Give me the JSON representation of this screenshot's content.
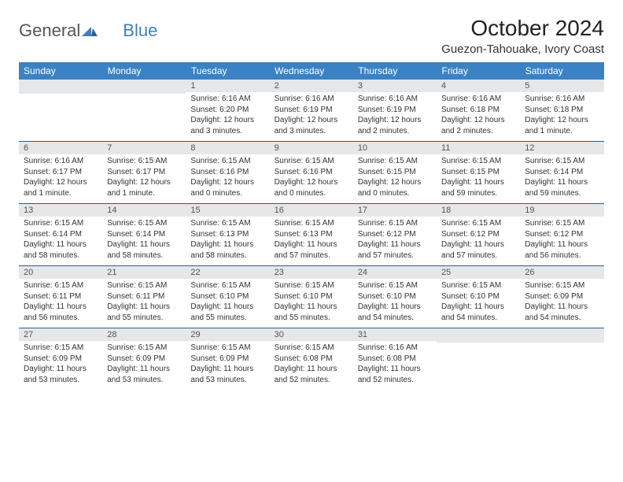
{
  "logo": {
    "text_a": "General",
    "text_b": "Blue"
  },
  "title": "October 2024",
  "location": "Guezon-Tahouake, Ivory Coast",
  "colors": {
    "header_bg": "#3b82c4",
    "header_fg": "#ffffff",
    "daynum_bg": "#e5e7e9",
    "row_border": "#2c5f8d",
    "logo_gray": "#555555",
    "logo_blue": "#3b82c4"
  },
  "weekdays": [
    "Sunday",
    "Monday",
    "Tuesday",
    "Wednesday",
    "Thursday",
    "Friday",
    "Saturday"
  ],
  "weeks": [
    [
      {
        "empty": true
      },
      {
        "empty": true
      },
      {
        "day": "1",
        "sunrise": "6:16 AM",
        "sunset": "6:20 PM",
        "daylight": "12 hours and 3 minutes."
      },
      {
        "day": "2",
        "sunrise": "6:16 AM",
        "sunset": "6:19 PM",
        "daylight": "12 hours and 3 minutes."
      },
      {
        "day": "3",
        "sunrise": "6:16 AM",
        "sunset": "6:19 PM",
        "daylight": "12 hours and 2 minutes."
      },
      {
        "day": "4",
        "sunrise": "6:16 AM",
        "sunset": "6:18 PM",
        "daylight": "12 hours and 2 minutes."
      },
      {
        "day": "5",
        "sunrise": "6:16 AM",
        "sunset": "6:18 PM",
        "daylight": "12 hours and 1 minute."
      }
    ],
    [
      {
        "day": "6",
        "sunrise": "6:16 AM",
        "sunset": "6:17 PM",
        "daylight": "12 hours and 1 minute."
      },
      {
        "day": "7",
        "sunrise": "6:15 AM",
        "sunset": "6:17 PM",
        "daylight": "12 hours and 1 minute."
      },
      {
        "day": "8",
        "sunrise": "6:15 AM",
        "sunset": "6:16 PM",
        "daylight": "12 hours and 0 minutes."
      },
      {
        "day": "9",
        "sunrise": "6:15 AM",
        "sunset": "6:16 PM",
        "daylight": "12 hours and 0 minutes."
      },
      {
        "day": "10",
        "sunrise": "6:15 AM",
        "sunset": "6:15 PM",
        "daylight": "12 hours and 0 minutes."
      },
      {
        "day": "11",
        "sunrise": "6:15 AM",
        "sunset": "6:15 PM",
        "daylight": "11 hours and 59 minutes."
      },
      {
        "day": "12",
        "sunrise": "6:15 AM",
        "sunset": "6:14 PM",
        "daylight": "11 hours and 59 minutes."
      }
    ],
    [
      {
        "day": "13",
        "sunrise": "6:15 AM",
        "sunset": "6:14 PM",
        "daylight": "11 hours and 58 minutes."
      },
      {
        "day": "14",
        "sunrise": "6:15 AM",
        "sunset": "6:14 PM",
        "daylight": "11 hours and 58 minutes."
      },
      {
        "day": "15",
        "sunrise": "6:15 AM",
        "sunset": "6:13 PM",
        "daylight": "11 hours and 58 minutes."
      },
      {
        "day": "16",
        "sunrise": "6:15 AM",
        "sunset": "6:13 PM",
        "daylight": "11 hours and 57 minutes."
      },
      {
        "day": "17",
        "sunrise": "6:15 AM",
        "sunset": "6:12 PM",
        "daylight": "11 hours and 57 minutes."
      },
      {
        "day": "18",
        "sunrise": "6:15 AM",
        "sunset": "6:12 PM",
        "daylight": "11 hours and 57 minutes."
      },
      {
        "day": "19",
        "sunrise": "6:15 AM",
        "sunset": "6:12 PM",
        "daylight": "11 hours and 56 minutes."
      }
    ],
    [
      {
        "day": "20",
        "sunrise": "6:15 AM",
        "sunset": "6:11 PM",
        "daylight": "11 hours and 56 minutes."
      },
      {
        "day": "21",
        "sunrise": "6:15 AM",
        "sunset": "6:11 PM",
        "daylight": "11 hours and 55 minutes."
      },
      {
        "day": "22",
        "sunrise": "6:15 AM",
        "sunset": "6:10 PM",
        "daylight": "11 hours and 55 minutes."
      },
      {
        "day": "23",
        "sunrise": "6:15 AM",
        "sunset": "6:10 PM",
        "daylight": "11 hours and 55 minutes."
      },
      {
        "day": "24",
        "sunrise": "6:15 AM",
        "sunset": "6:10 PM",
        "daylight": "11 hours and 54 minutes."
      },
      {
        "day": "25",
        "sunrise": "6:15 AM",
        "sunset": "6:10 PM",
        "daylight": "11 hours and 54 minutes."
      },
      {
        "day": "26",
        "sunrise": "6:15 AM",
        "sunset": "6:09 PM",
        "daylight": "11 hours and 54 minutes."
      }
    ],
    [
      {
        "day": "27",
        "sunrise": "6:15 AM",
        "sunset": "6:09 PM",
        "daylight": "11 hours and 53 minutes."
      },
      {
        "day": "28",
        "sunrise": "6:15 AM",
        "sunset": "6:09 PM",
        "daylight": "11 hours and 53 minutes."
      },
      {
        "day": "29",
        "sunrise": "6:15 AM",
        "sunset": "6:09 PM",
        "daylight": "11 hours and 53 minutes."
      },
      {
        "day": "30",
        "sunrise": "6:15 AM",
        "sunset": "6:08 PM",
        "daylight": "11 hours and 52 minutes."
      },
      {
        "day": "31",
        "sunrise": "6:16 AM",
        "sunset": "6:08 PM",
        "daylight": "11 hours and 52 minutes."
      },
      {
        "empty": true
      },
      {
        "empty": true
      }
    ]
  ],
  "labels": {
    "sunrise": "Sunrise:",
    "sunset": "Sunset:",
    "daylight": "Daylight:"
  }
}
